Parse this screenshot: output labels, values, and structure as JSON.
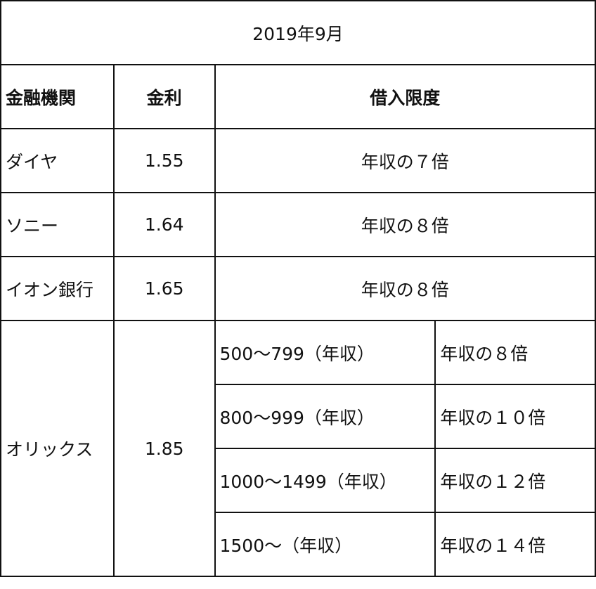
{
  "title": "2019年9月",
  "headers": {
    "bank": "金融機関",
    "rate": "金利",
    "limit": "借入限度"
  },
  "rows": [
    {
      "bank": "ダイヤ",
      "rate": "1.55",
      "limit": "年収の７倍"
    },
    {
      "bank": "ソニー",
      "rate": "1.64",
      "limit": "年収の８倍"
    },
    {
      "bank": "イオン銀行",
      "rate": "1.65",
      "limit": "年収の８倍"
    }
  ],
  "orix": {
    "bank": "オリックス",
    "rate": "1.85",
    "tiers": [
      {
        "income": "500～799（年収）",
        "limit": "年収の８倍"
      },
      {
        "income": "800～999（年収）",
        "limit": "年収の１０倍"
      },
      {
        "income": "1000～1499（年収）",
        "limit": "年収の１２倍"
      },
      {
        "income": "1500～（年収）",
        "limit": "年収の１４倍"
      }
    ]
  }
}
